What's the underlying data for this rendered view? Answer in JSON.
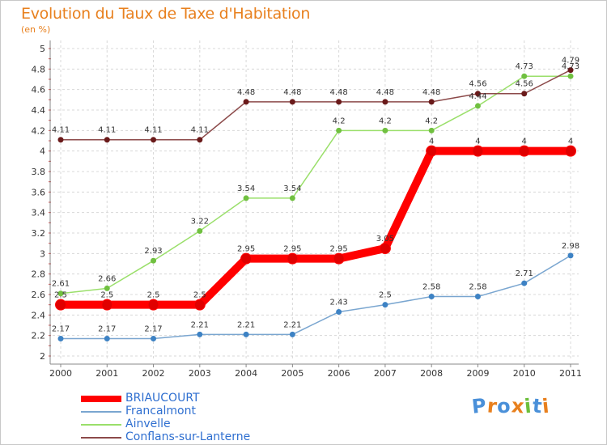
{
  "chart_data": {
    "type": "line",
    "title": "Evolution du Taux de Taxe d'Habitation",
    "subtitle": "(en %)",
    "xlabel": "",
    "ylabel": "",
    "ylim": [
      2,
      5
    ],
    "yticks": [
      "2",
      "2.2",
      "2.4",
      "2.6",
      "2.8",
      "3",
      "3.2",
      "3.4",
      "3.6",
      "3.8",
      "4",
      "4.2",
      "4.4",
      "4.6",
      "4.8",
      "5"
    ],
    "categories": [
      "2000",
      "2001",
      "2002",
      "2003",
      "2004",
      "2005",
      "2006",
      "2007",
      "2008",
      "2009",
      "2010",
      "2011"
    ],
    "series": [
      {
        "name": "BRIAUCOURT",
        "color": "#ff0000",
        "dot": "#dd0000",
        "values": [
          2.5,
          2.5,
          2.5,
          2.5,
          2.95,
          2.95,
          2.95,
          3.05,
          4,
          4,
          4,
          4
        ],
        "labels": [
          "2.5",
          "2.5",
          "2.5",
          "2.5",
          "2.95",
          "2.95",
          "2.95",
          "3.05",
          "4",
          "4",
          "4",
          "4"
        ]
      },
      {
        "name": "Francalmont",
        "color": "#7aa6d0",
        "dot": "#3d82c4",
        "values": [
          2.17,
          2.17,
          2.17,
          2.21,
          2.21,
          2.21,
          2.43,
          2.5,
          2.58,
          2.58,
          2.71,
          2.98
        ],
        "labels": [
          "2.17",
          "2.17",
          "2.17",
          "2.21",
          "2.21",
          "2.21",
          "2.43",
          "2.5",
          "2.58",
          "2.58",
          "2.71",
          "2.98"
        ]
      },
      {
        "name": "Ainvelle",
        "color": "#9adf6a",
        "dot": "#70c040",
        "values": [
          2.61,
          2.66,
          2.93,
          3.22,
          3.54,
          3.54,
          4.2,
          4.2,
          4.2,
          4.44,
          4.73,
          4.73
        ],
        "labels": [
          "2.61",
          "2.66",
          "2.93",
          "3.22",
          "3.54",
          "3.54",
          "4.2",
          "4.2",
          "4.2",
          "4.44",
          "4.73",
          "4.73"
        ]
      },
      {
        "name": "Conflans-sur-Lanterne",
        "color": "#8c4a4a",
        "dot": "#6a1a1a",
        "values": [
          4.11,
          4.11,
          4.11,
          4.11,
          4.48,
          4.48,
          4.48,
          4.48,
          4.48,
          4.56,
          4.56,
          4.79
        ],
        "labels": [
          "4.11",
          "4.11",
          "4.11",
          "4.11",
          "4.48",
          "4.48",
          "4.48",
          "4.48",
          "4.48",
          "4.56",
          "4.56",
          "4.79"
        ]
      }
    ]
  },
  "legend": [
    {
      "label": "BRIAUCOURT",
      "color": "#ff0000",
      "text_color": "#2f6fd0"
    },
    {
      "label": "Francalmont",
      "color": "#7aa6d0",
      "text_color": "#2f6fd0"
    },
    {
      "label": "Ainvelle",
      "color": "#9adf6a",
      "text_color": "#2f6fd0"
    },
    {
      "label": "Conflans-sur-Lanterne",
      "color": "#8c4a4a",
      "text_color": "#2f6fd0"
    }
  ],
  "brand": {
    "letters": [
      "P",
      "r",
      "o",
      "x",
      "i",
      "t",
      "i"
    ],
    "colors": [
      "#4a90d9",
      "#e8801e",
      "#4a90d9",
      "#e8801e",
      "#6cbf3a",
      "#4a90d9",
      "#e8801e"
    ]
  }
}
